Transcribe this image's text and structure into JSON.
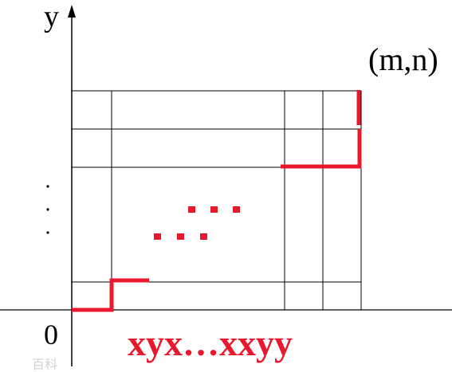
{
  "axes": {
    "y_label": "y",
    "origin_label": "0"
  },
  "endpoint_label": "(m,n)",
  "path_word": "xyx…xxyy",
  "watermark_text": "百科",
  "colors": {
    "path": "#e8192c",
    "grid": "#000000",
    "watermark": "#c8c8c8"
  }
}
